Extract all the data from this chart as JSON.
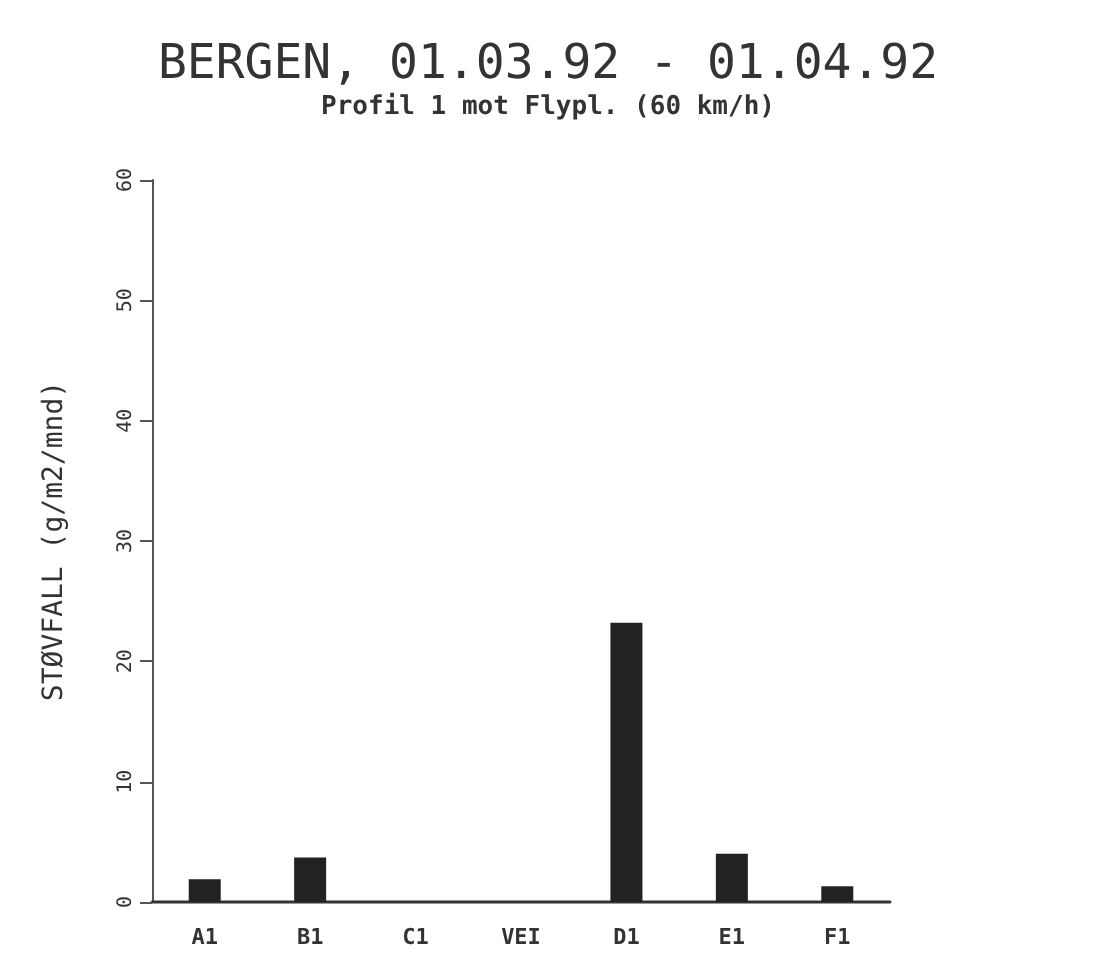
{
  "chart_data": {
    "type": "bar",
    "title": "BERGEN, 01.03.92 - 01.04.92",
    "subtitle": "Profil 1 mot Flypl. (60 km/h)",
    "ylabel": "STØVFALL (g/m2/mnd)",
    "categories": [
      "A1",
      "B1",
      "C1",
      "VEI",
      "D1",
      "E1",
      "F1"
    ],
    "values": [
      1.9,
      3.7,
      0,
      0,
      23.2,
      4.0,
      1.3
    ],
    "color": "#222222",
    "ylim": [
      0,
      60
    ],
    "yticks": [
      0,
      10,
      20,
      30,
      40,
      50,
      60
    ]
  }
}
